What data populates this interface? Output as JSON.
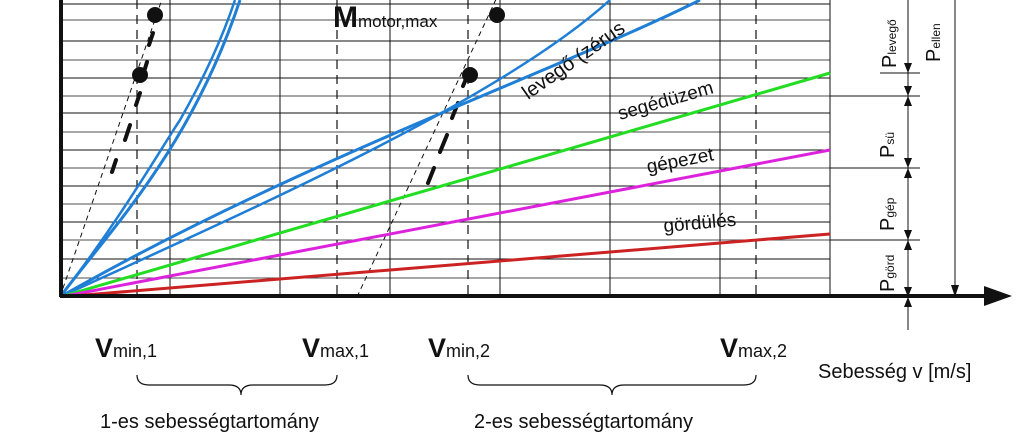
{
  "curve_labels": {
    "air": "levegő (zérus",
    "aux": "segédüzem",
    "machinery": "gépezet",
    "rolling": "gördülés"
  },
  "motor_label": {
    "main": "M",
    "sub": "motor,max"
  },
  "speed_markers": [
    {
      "main": "V",
      "sub": "min,1"
    },
    {
      "main": "V",
      "sub": "max,1"
    },
    {
      "main": "V",
      "sub": "min,2"
    },
    {
      "main": "V",
      "sub": "max,2"
    }
  ],
  "axis_label": "Sebesség v [m/s]",
  "ranges": [
    "1-es sebességtartomány",
    "2-es sebességtartomány"
  ],
  "power_labels": [
    {
      "main": "P",
      "sub": "levegő"
    },
    {
      "main": "P",
      "sub": "ellen"
    },
    {
      "main": "P",
      "sub": "sü"
    },
    {
      "main": "P",
      "sub": "gép"
    },
    {
      "main": "P",
      "sub": "görd"
    }
  ],
  "colors": {
    "air": "#1f7fd6",
    "aux": "#22dd22",
    "machinery": "#dd22dd",
    "rolling": "#cc2222",
    "grid": "#111111"
  }
}
